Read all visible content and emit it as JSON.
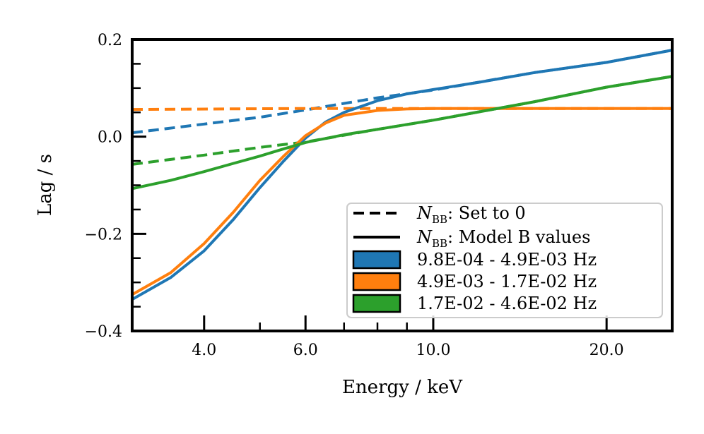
{
  "chart_data": {
    "type": "line",
    "title": "",
    "xlabel": "Energy / keV",
    "ylabel": "Lag / s",
    "xscale": "log",
    "xlim": [
      3.0,
      26.0
    ],
    "ylim": [
      -0.4,
      0.2
    ],
    "x_major_ticks": [
      {
        "value": 4.0,
        "label": "4.0"
      },
      {
        "value": 6.0,
        "label": "6.0"
      },
      {
        "value": 10.0,
        "label": "10.0"
      },
      {
        "value": 20.0,
        "label": "20.0"
      }
    ],
    "x_minor_ticks": [
      5.0,
      7.0,
      8.0,
      9.0
    ],
    "y_major_ticks": [
      {
        "value": 0.2,
        "label": "0.2"
      },
      {
        "value": 0.0,
        "label": "0.0"
      },
      {
        "value": -0.2,
        "label": "−0.2"
      },
      {
        "value": -0.4,
        "label": "−0.4"
      }
    ],
    "y_minor_ticks": [
      0.15,
      0.1,
      0.05,
      -0.05,
      -0.1,
      -0.15,
      -0.25,
      -0.3,
      -0.35
    ],
    "grid": false,
    "legend_position": "bottom-right",
    "legend": {
      "style_entries": [
        {
          "symbol": "N",
          "subscript": "BB",
          "text": ": Set to 0",
          "linestyle": "dashed"
        },
        {
          "symbol": "N",
          "subscript": "BB",
          "text": ": Model B values",
          "linestyle": "solid"
        }
      ],
      "band_entries": [
        {
          "label": "9.8E-04 - 4.9E-03 Hz",
          "color": "#1f77b4"
        },
        {
          "label": "4.9E-03 - 1.7E-02 Hz",
          "color": "#ff7f0e"
        },
        {
          "label": "1.7E-02 - 4.6E-02 Hz",
          "color": "#2ca02c"
        }
      ]
    },
    "series": [
      {
        "name": "9.8E-04 - 4.9E-03 Hz (Set to 0)",
        "color": "#1f77b4",
        "linestyle": "dashed",
        "x": [
          3.0,
          4.0,
          5.0,
          6.0,
          8.0,
          10.0,
          15.0,
          20.0,
          26.0
        ],
        "y": [
          0.008,
          0.026,
          0.04,
          0.055,
          0.08,
          0.096,
          0.132,
          0.153,
          0.178
        ]
      },
      {
        "name": "4.9E-03 - 1.7E-02 Hz (Set to 0)",
        "color": "#ff7f0e",
        "linestyle": "dashed",
        "x": [
          3.0,
          6.0,
          10.0,
          20.0,
          26.0
        ],
        "y": [
          0.056,
          0.058,
          0.058,
          0.058,
          0.058
        ]
      },
      {
        "name": "1.7E-02 - 4.6E-02 Hz (Set to 0)",
        "color": "#2ca02c",
        "linestyle": "dashed",
        "x": [
          3.0,
          4.0,
          5.0,
          6.0,
          8.0,
          10.0,
          15.0,
          20.0,
          26.0
        ],
        "y": [
          -0.057,
          -0.038,
          -0.022,
          -0.011,
          0.015,
          0.034,
          0.072,
          0.102,
          0.124
        ]
      },
      {
        "name": "9.8E-04 - 4.9E-03 Hz (Model B)",
        "color": "#1f77b4",
        "linestyle": "solid",
        "x": [
          3.0,
          3.5,
          4.0,
          4.5,
          5.0,
          5.5,
          6.0,
          6.5,
          7.0,
          8.0,
          9.0,
          10.0,
          12.0,
          15.0,
          20.0,
          26.0
        ],
        "y": [
          -0.335,
          -0.29,
          -0.235,
          -0.17,
          -0.105,
          -0.05,
          -0.003,
          0.03,
          0.05,
          0.074,
          0.088,
          0.097,
          0.112,
          0.132,
          0.153,
          0.178
        ]
      },
      {
        "name": "4.9E-03 - 1.7E-02 Hz (Model B)",
        "color": "#ff7f0e",
        "linestyle": "solid",
        "x": [
          3.0,
          3.5,
          4.0,
          4.5,
          5.0,
          5.5,
          6.0,
          6.5,
          7.0,
          8.0,
          9.0,
          10.0,
          12.0,
          15.0,
          20.0,
          26.0
        ],
        "y": [
          -0.325,
          -0.28,
          -0.22,
          -0.155,
          -0.09,
          -0.04,
          0.002,
          0.028,
          0.044,
          0.054,
          0.057,
          0.058,
          0.058,
          0.058,
          0.058,
          0.058
        ]
      },
      {
        "name": "1.7E-02 - 4.6E-02 Hz (Model B)",
        "color": "#2ca02c",
        "linestyle": "solid",
        "x": [
          3.0,
          3.5,
          4.0,
          4.5,
          5.0,
          5.5,
          6.0,
          7.0,
          8.0,
          10.0,
          15.0,
          20.0,
          26.0
        ],
        "y": [
          -0.107,
          -0.09,
          -0.072,
          -0.055,
          -0.04,
          -0.025,
          -0.012,
          0.004,
          0.015,
          0.034,
          0.072,
          0.102,
          0.124
        ]
      }
    ]
  }
}
